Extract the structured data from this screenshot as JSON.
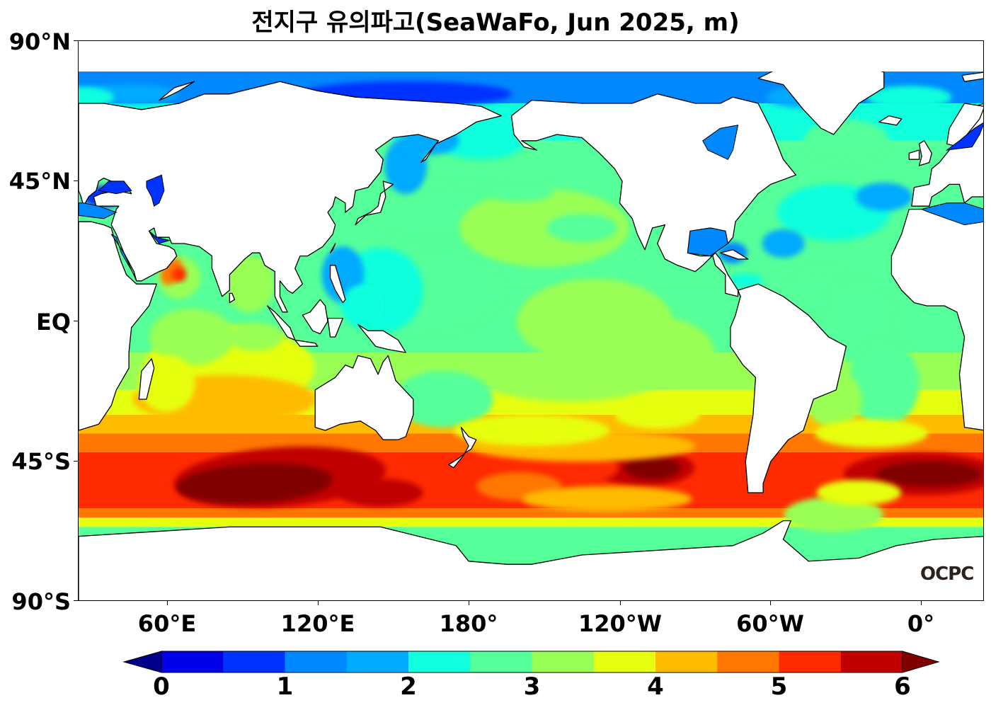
{
  "title": "전지구 유의파고(SeaWaFo, Jun 2025, m)",
  "watermark": "OCPC",
  "lat_labels": [
    "90°N",
    "45°N",
    "EQ",
    "45°S",
    "90°S"
  ],
  "lon_labels": [
    "60°E",
    "120°E",
    "180°",
    "120°W",
    "60°W",
    "0°"
  ],
  "colorbar": {
    "tick_labels": [
      "0",
      "1",
      "2",
      "3",
      "4",
      "5",
      "6"
    ],
    "min": 0,
    "max": 6,
    "step": 0.5,
    "extend": "both",
    "colors": [
      "#0000a8",
      "#0000e6",
      "#0033ff",
      "#0088ff",
      "#00aaff",
      "#10ffdd",
      "#55ff99",
      "#99ff55",
      "#e6ff10",
      "#ffbb00",
      "#ff7700",
      "#ff2a00",
      "#c00000",
      "#800000"
    ],
    "under_color": "#00008b",
    "over_color": "#800000"
  },
  "map": {
    "projection": "equirectangular",
    "central_longitude": 160,
    "lon_range": [
      20,
      380
    ],
    "lat_range": [
      -90,
      90
    ],
    "land_color": "#ffffff",
    "coastline_color": "#000000"
  }
}
